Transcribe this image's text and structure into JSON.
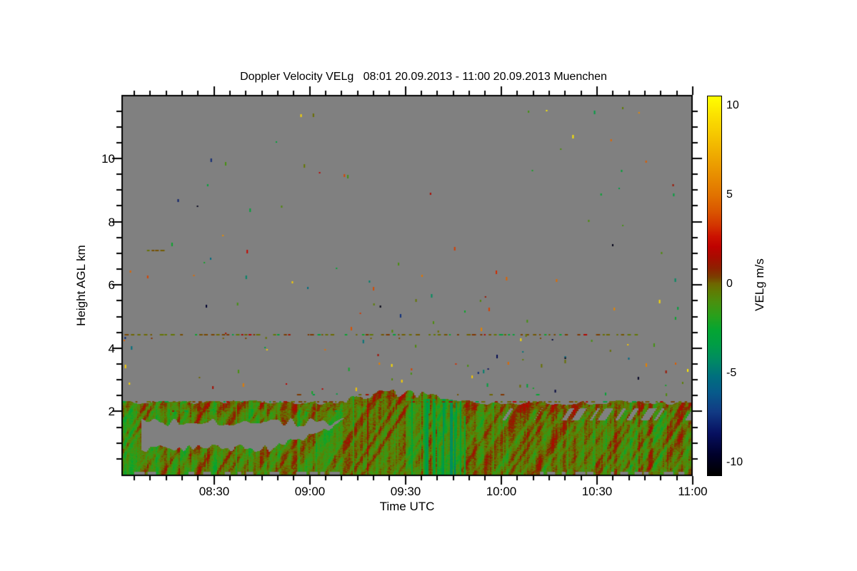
{
  "chart_data": {
    "type": "heatmap",
    "title": "Doppler Velocity VELg   08:01 20.09.2013 - 11:00 20.09.2013 Muenchen",
    "xlabel": "Time UTC",
    "ylabel": "Height AGL km",
    "x_start_utc": "08:01",
    "x_end_utc": "11:00",
    "x_tick_labels": [
      "08:30",
      "09:00",
      "09:30",
      "10:00",
      "10:30",
      "11:00"
    ],
    "x_minor_tick_minutes": 5,
    "y_tick_labels": [
      "10",
      "8",
      "6",
      "4",
      "2"
    ],
    "y_ticks_km": [
      10,
      8,
      6,
      4,
      2
    ],
    "y_minor_tick_km": 0.5,
    "y_range_km": [
      0,
      12
    ],
    "no_data_color": "#808080",
    "frame_color": "#000000",
    "colorbar": {
      "label": "VELg m/s",
      "tick_labels": [
        "10",
        "5",
        "0",
        "-5",
        "-10"
      ],
      "tick_values": [
        10,
        5,
        0,
        -5,
        -10
      ],
      "value_range": [
        -10.76,
        10.56
      ],
      "stops": [
        [
          -10.7,
          "#000000"
        ],
        [
          -9.6,
          "#00002a"
        ],
        [
          -8.4,
          "#071060"
        ],
        [
          -7.2,
          "#113a84"
        ],
        [
          -6.1,
          "#075a8a"
        ],
        [
          -5.2,
          "#006f7e"
        ],
        [
          -4.3,
          "#008a63"
        ],
        [
          -3.4,
          "#009d45"
        ],
        [
          -2.6,
          "#04a532"
        ],
        [
          -1.8,
          "#28a01b"
        ],
        [
          -1.0,
          "#4a8f0e"
        ],
        [
          -0.4,
          "#607b03"
        ],
        [
          0.0,
          "#6e6700"
        ],
        [
          0.4,
          "#7a3f00"
        ],
        [
          0.9,
          "#8e2000"
        ],
        [
          1.5,
          "#a70c00"
        ],
        [
          2.1,
          "#bf0200"
        ],
        [
          2.7,
          "#cc1200"
        ],
        [
          3.3,
          "#d33400"
        ],
        [
          4.1,
          "#da5600"
        ],
        [
          5.0,
          "#e17200"
        ],
        [
          6.1,
          "#e88e00"
        ],
        [
          7.3,
          "#efab00"
        ],
        [
          8.5,
          "#f6c900"
        ],
        [
          9.5,
          "#fbe100"
        ],
        [
          10.7,
          "#ffff00"
        ]
      ]
    },
    "features": {
      "seed": 20130920,
      "mixed_layer": {
        "ground_top_km": 0.85,
        "residual_band_km": [
          1.66,
          2.28
        ],
        "gap_interval_utc": [
          "08:07",
          "09:12"
        ],
        "merged_after_utc": "09:12",
        "bump_interval_utc": [
          "09:05",
          "09:52"
        ],
        "bump_extra_km": 0.38,
        "teal_streaks_utc": [
          "09:32",
          "09:49"
        ],
        "red_bias_after_utc": "10:00",
        "typical_velocity_range_ms": [
          -4,
          3
        ]
      },
      "dotted_lines": [
        {
          "km": 2.31,
          "from": "08:01",
          "to": "11:00",
          "density": 0.78
        },
        {
          "km": 2.02,
          "from": "08:14",
          "to": "09:10",
          "density": 0.4
        },
        {
          "km": 2.52,
          "from": "08:56",
          "to": "10:21",
          "density": 0.25
        },
        {
          "km": 4.42,
          "from": "08:02",
          "to": "10:42",
          "density": 0.68,
          "stray_below": true
        },
        {
          "km": 7.08,
          "from": "08:09",
          "to": "08:15",
          "density": 0.85
        }
      ],
      "speckle_zones": [
        {
          "km_range": [
            2.55,
            4.35
          ],
          "count": 62
        },
        {
          "km_range": [
            4.35,
            6.5
          ],
          "count": 38
        },
        {
          "km_range": [
            6.5,
            11.9
          ],
          "count": 42
        }
      ],
      "ground_clutter_gray_utc": [
        [
          "08:05",
          "09:10"
        ],
        [
          "10:08",
          "11:00"
        ]
      ]
    }
  }
}
